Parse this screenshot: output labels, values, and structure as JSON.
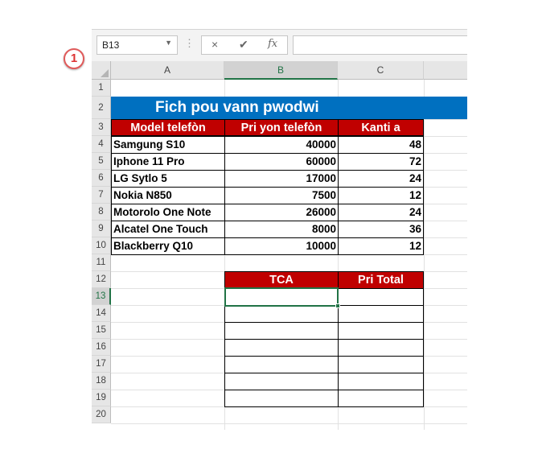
{
  "formula_bar": {
    "name_box": "B13",
    "cancel_icon": "×",
    "enter_icon": "✔",
    "fx_label": "fx",
    "formula": ""
  },
  "annotation": {
    "label": "1"
  },
  "columns": [
    "A",
    "B",
    "C"
  ],
  "rows": [
    "1",
    "2",
    "3",
    "4",
    "5",
    "6",
    "7",
    "8",
    "9",
    "10",
    "11",
    "12",
    "13",
    "14",
    "15",
    "16",
    "17",
    "18",
    "19",
    "20"
  ],
  "sheet_title": "Fich pou vann pwodwi",
  "table": {
    "headers": [
      "Model telefòn",
      "Pri yon telefòn",
      "Kanti a"
    ],
    "rows": [
      [
        "Samgung S10",
        "40000",
        "48"
      ],
      [
        "Iphone 11 Pro",
        "60000",
        "72"
      ],
      [
        "LG Sytlo 5",
        "17000",
        "24"
      ],
      [
        "Nokia N850",
        "7500",
        "12"
      ],
      [
        "Motorolo One Note",
        "26000",
        "24"
      ],
      [
        "Alcatel One Touch",
        "8000",
        "36"
      ],
      [
        "Blackberry Q10",
        "10000",
        "12"
      ]
    ]
  },
  "summary": {
    "headers": [
      "TCA",
      "Pri Total"
    ]
  },
  "colors": {
    "header_red": "#c00000",
    "title_blue": "#0070c0",
    "selection_green": "#217346"
  }
}
